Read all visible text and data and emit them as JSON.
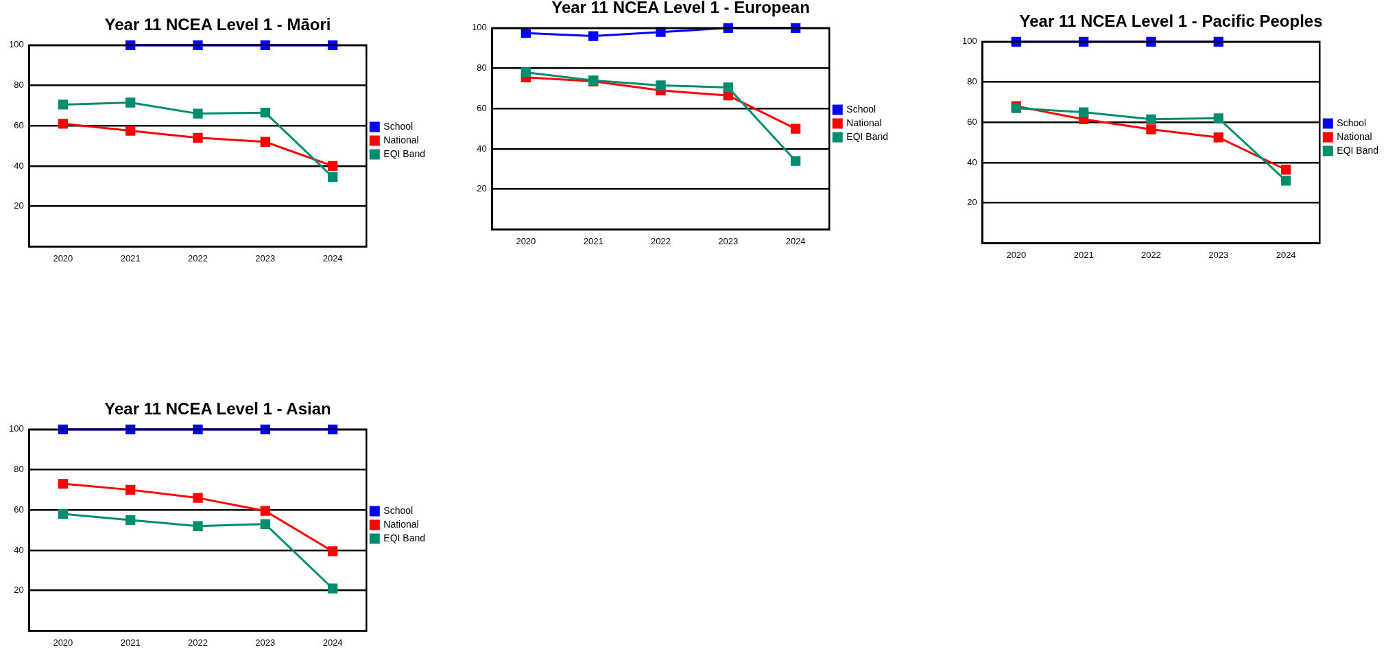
{
  "chart_data": [
    {
      "type": "line",
      "title": "Year 11 NCEA Level 1 - Māori",
      "categories": [
        "2020",
        "2021",
        "2022",
        "2023",
        "2024"
      ],
      "ylim": [
        0,
        100
      ],
      "yticks": [
        20,
        40,
        60,
        80,
        100
      ],
      "grid": "y",
      "legend": "right",
      "marker": "square",
      "series": [
        {
          "name": "School",
          "color": "#0000ff",
          "values": [
            null,
            100,
            100,
            100,
            100
          ]
        },
        {
          "name": "National",
          "color": "#ff0000",
          "values": [
            61,
            57.5,
            54,
            52,
            40
          ]
        },
        {
          "name": "EQI Band",
          "color": "#008c6e",
          "values": [
            70.5,
            71.5,
            66,
            66.5,
            34.5
          ]
        }
      ]
    },
    {
      "type": "line",
      "title": "Year 11 NCEA Level 1 - European",
      "categories": [
        "2020",
        "2021",
        "2022",
        "2023",
        "2024"
      ],
      "ylim": [
        0,
        100
      ],
      "yticks": [
        20,
        40,
        60,
        80,
        100
      ],
      "grid": "y",
      "legend": "right",
      "marker": "square",
      "series": [
        {
          "name": "School",
          "color": "#0000ff",
          "values": [
            97.5,
            96,
            98,
            100,
            100
          ]
        },
        {
          "name": "National",
          "color": "#ff0000",
          "values": [
            75.5,
            73.5,
            69,
            66.5,
            50
          ]
        },
        {
          "name": "EQI Band",
          "color": "#008c6e",
          "values": [
            78,
            74,
            71.5,
            70.5,
            34
          ]
        }
      ]
    },
    {
      "type": "line",
      "title": "Year 11 NCEA Level 1 - Pacific Peoples",
      "categories": [
        "2020",
        "2021",
        "2022",
        "2023",
        "2024"
      ],
      "ylim": [
        0,
        100
      ],
      "yticks": [
        20,
        40,
        60,
        80,
        100
      ],
      "grid": "y",
      "legend": "right",
      "marker": "square",
      "series": [
        {
          "name": "School",
          "color": "#0000ff",
          "values": [
            100,
            100,
            100,
            100,
            null
          ]
        },
        {
          "name": "National",
          "color": "#ff0000",
          "values": [
            68,
            61.5,
            56.5,
            52.5,
            36.5
          ]
        },
        {
          "name": "EQI Band",
          "color": "#008c6e",
          "values": [
            67,
            65,
            61.5,
            62,
            31
          ]
        }
      ]
    },
    {
      "type": "line",
      "title": "Year 11 NCEA Level 1 - Asian",
      "categories": [
        "2020",
        "2021",
        "2022",
        "2023",
        "2024"
      ],
      "ylim": [
        0,
        100
      ],
      "yticks": [
        20,
        40,
        60,
        80,
        100
      ],
      "grid": "y",
      "legend": "right",
      "marker": "square",
      "series": [
        {
          "name": "School",
          "color": "#0000ff",
          "values": [
            100,
            100,
            100,
            100,
            100
          ]
        },
        {
          "name": "National",
          "color": "#ff0000",
          "values": [
            73,
            70,
            66,
            59.5,
            39.5
          ]
        },
        {
          "name": "EQI Band",
          "color": "#008c6e",
          "values": [
            58,
            55,
            52,
            53,
            21
          ]
        }
      ]
    }
  ]
}
